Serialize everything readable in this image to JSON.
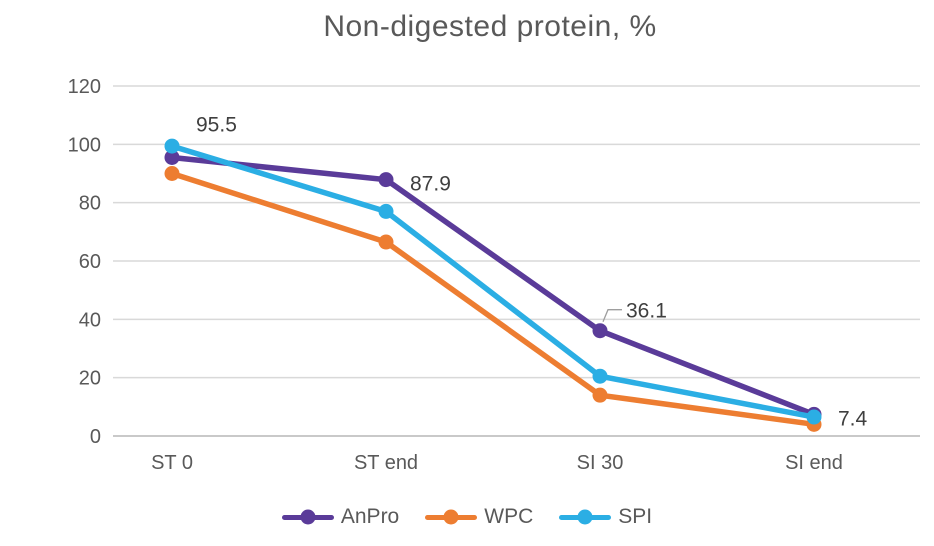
{
  "title": "Non-digested protein, %",
  "chart_data": {
    "type": "line",
    "title": "Non-digested protein, %",
    "categories": [
      "ST 0",
      "ST end",
      "SI 30",
      "SI end"
    ],
    "series": [
      {
        "name": "AnPro",
        "color": "#5A3B99",
        "values": [
          95.5,
          87.9,
          36.1,
          7.4
        ]
      },
      {
        "name": "WPC",
        "color": "#ED7D31",
        "values": [
          90.0,
          66.5,
          14.0,
          4.0
        ]
      },
      {
        "name": "SPI",
        "color": "#2BAEE4",
        "values": [
          99.4,
          77.0,
          20.5,
          6.5
        ]
      }
    ],
    "data_labels": {
      "series": "AnPro",
      "texts": [
        "95.5",
        "87.9",
        "36.1",
        "7.4"
      ]
    },
    "y_ticks": [
      0,
      20,
      40,
      60,
      80,
      100,
      120
    ],
    "ylim": [
      0,
      120
    ],
    "grid": true,
    "legend_position": "bottom",
    "colors": {
      "gridline": "#d9d9d9",
      "axis_line": "#c9c9c9",
      "tick_label": "#595959",
      "title": "#595959",
      "data_label": "#3f3f3f",
      "leader_line": "#9e9e9e"
    }
  }
}
